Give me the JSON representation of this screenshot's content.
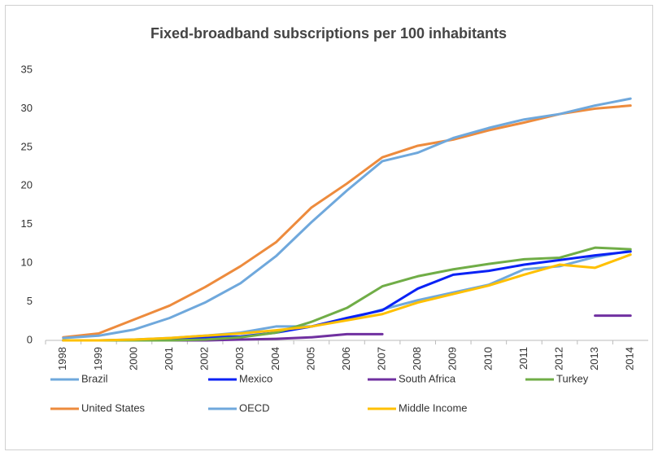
{
  "chart_data": {
    "type": "line",
    "title": "Fixed-broadband subscriptions per 100 inhabitants",
    "categories": [
      "1998",
      "1999",
      "2000",
      "2001",
      "2002",
      "2003",
      "2004",
      "2005",
      "2006",
      "2007",
      "2008",
      "2009",
      "2010",
      "2011",
      "2012",
      "2013",
      "2014"
    ],
    "ylim": [
      0,
      35
    ],
    "yticks": [
      0,
      5,
      10,
      15,
      20,
      25,
      30,
      35
    ],
    "grid": false,
    "legend": "bottom",
    "series": [
      {
        "name": "Brazil",
        "color": "#6fa8dc",
        "values": [
          0,
          0,
          0.1,
          0.3,
          0.6,
          1.0,
          1.8,
          1.8,
          2.7,
          4.0,
          5.2,
          6.2,
          7.2,
          9.2,
          9.6,
          10.8,
          11.6
        ]
      },
      {
        "name": "Mexico",
        "color": "#0a22f5",
        "values": [
          0,
          0,
          0,
          0.2,
          0.4,
          0.5,
          1.0,
          1.8,
          2.9,
          3.9,
          6.7,
          8.5,
          9.0,
          9.8,
          10.4,
          11.0,
          11.5
        ]
      },
      {
        "name": "South Africa",
        "color": "#7030a0",
        "values": [
          0,
          0,
          0,
          0,
          0,
          0.1,
          0.2,
          0.4,
          0.8,
          0.8,
          null,
          null,
          null,
          null,
          null,
          3.2,
          3.2
        ]
      },
      {
        "name": "Turkey",
        "color": "#70ad47",
        "values": [
          0,
          0,
          0,
          0,
          0.1,
          0.4,
          1.0,
          2.4,
          4.2,
          7.0,
          8.3,
          9.2,
          9.9,
          10.5,
          10.7,
          12.0,
          11.8
        ]
      },
      {
        "name": "United States",
        "color": "#ed8b3d",
        "values": [
          0.4,
          0.9,
          2.7,
          4.5,
          6.9,
          9.6,
          12.7,
          17.2,
          20.3,
          23.7,
          25.2,
          26.0,
          27.2,
          28.2,
          29.3,
          30.0,
          30.4
        ]
      },
      {
        "name": "OECD",
        "color": "#6fa8dc",
        "values": [
          0.3,
          0.6,
          1.4,
          2.9,
          4.9,
          7.4,
          10.9,
          15.3,
          19.4,
          23.2,
          24.3,
          26.2,
          27.5,
          28.6,
          29.3,
          30.4,
          31.3
        ]
      },
      {
        "name": "Middle Income",
        "color": "#ffc000",
        "values": [
          0,
          0,
          0.1,
          0.3,
          0.6,
          0.9,
          1.3,
          1.8,
          2.6,
          3.4,
          4.9,
          6.0,
          7.1,
          8.5,
          9.8,
          9.4,
          11.1
        ]
      }
    ]
  }
}
